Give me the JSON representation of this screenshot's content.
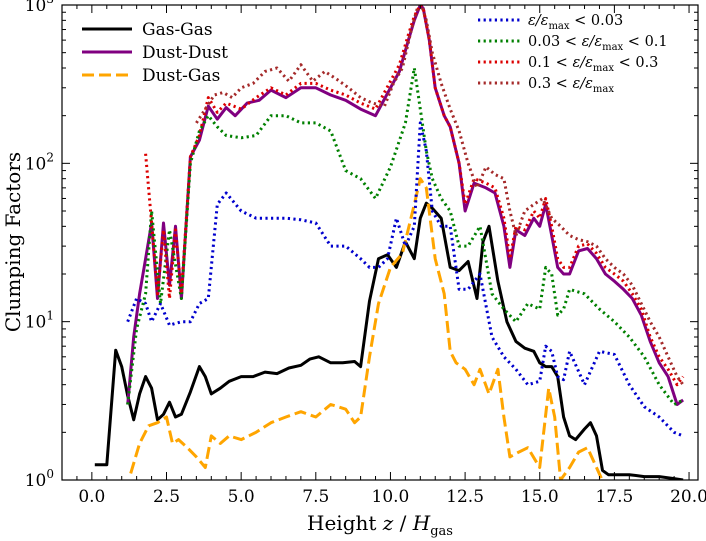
{
  "chart_data": {
    "type": "line",
    "xlabel": "Height z / H_gas",
    "xlabel_parts": {
      "prefix": "Height ",
      "var": "z",
      "sep": " / ",
      "H": "H",
      "sub": "gas"
    },
    "ylabel": "Clumping Factors",
    "xlim": [
      -1.0,
      20.3
    ],
    "ylim": [
      1,
      1000
    ],
    "yscale": "log",
    "x_ticks": [
      0.0,
      2.5,
      5.0,
      7.5,
      10.0,
      12.5,
      15.0,
      17.5,
      20.0
    ],
    "x_tick_labels": [
      "0.0",
      "2.5",
      "5.0",
      "7.5",
      "10.0",
      "12.5",
      "15.0",
      "17.5",
      "20.0"
    ],
    "y_ticks": [
      1,
      10,
      100,
      1000
    ],
    "y_tick_labels": [
      {
        "base": "10",
        "exp": "0"
      },
      {
        "base": "10",
        "exp": "1"
      },
      {
        "base": "10",
        "exp": "2"
      },
      {
        "base": "10",
        "exp": "3"
      }
    ],
    "legend_left_position": "top-left",
    "legend_right_position": "top-right",
    "grid": false,
    "series": [
      {
        "name": "Gas-Gas",
        "color": "#000000",
        "style": "solid",
        "legend": "left",
        "x": [
          0.1,
          0.5,
          0.8,
          1.0,
          1.2,
          1.4,
          1.6,
          1.8,
          2.0,
          2.2,
          2.4,
          2.6,
          2.8,
          3.0,
          3.3,
          3.6,
          3.8,
          4.0,
          4.3,
          4.6,
          5.0,
          5.4,
          5.8,
          6.2,
          6.6,
          7.0,
          7.3,
          7.6,
          8.0,
          8.4,
          8.8,
          9.0,
          9.3,
          9.6,
          9.9,
          10.2,
          10.5,
          10.8,
          11.0,
          11.2,
          11.4,
          11.7,
          12.0,
          12.3,
          12.6,
          12.9,
          13.1,
          13.3,
          13.6,
          13.9,
          14.2,
          14.5,
          14.8,
          15.0,
          15.2,
          15.4,
          15.6,
          15.8,
          16.0,
          16.2,
          16.5,
          16.7,
          16.9,
          17.1,
          17.3,
          17.6,
          18.0,
          18.5,
          19.0,
          19.5,
          19.8
        ],
        "y": [
          1.25,
          1.25,
          6.6,
          5.2,
          3.4,
          2.4,
          3.5,
          4.5,
          3.8,
          2.4,
          2.6,
          3.1,
          2.5,
          2.6,
          3.6,
          5.2,
          4.5,
          3.5,
          3.8,
          4.2,
          4.5,
          4.5,
          4.8,
          4.7,
          5.1,
          5.3,
          5.8,
          6.0,
          5.5,
          5.5,
          5.6,
          5.2,
          13.5,
          25.0,
          26.5,
          22.0,
          32.0,
          25.0,
          45.0,
          56.0,
          52.0,
          45.0,
          22.0,
          21.0,
          24.0,
          14.0,
          32.0,
          40.0,
          18.0,
          10.0,
          7.5,
          6.8,
          6.5,
          5.5,
          5.2,
          5.2,
          4.5,
          2.5,
          1.9,
          1.8,
          2.1,
          2.3,
          1.9,
          1.15,
          1.08,
          1.08,
          1.08,
          1.05,
          1.05,
          1.02,
          1.0
        ]
      },
      {
        "name": "Dust-Dust",
        "color": "#800080",
        "style": "solid",
        "legend": "left",
        "x": [
          1.2,
          1.4,
          1.6,
          1.8,
          2.0,
          2.2,
          2.4,
          2.6,
          2.8,
          3.0,
          3.3,
          3.6,
          3.9,
          4.2,
          4.5,
          4.8,
          5.2,
          5.6,
          6.0,
          6.5,
          7.0,
          7.5,
          8.0,
          8.5,
          9.0,
          9.5,
          10.0,
          10.3,
          10.6,
          10.8,
          11.0,
          11.1,
          11.3,
          11.5,
          11.8,
          12.0,
          12.3,
          12.5,
          12.8,
          13.2,
          13.5,
          13.8,
          14.0,
          14.2,
          14.5,
          14.8,
          15.0,
          15.2,
          15.4,
          15.6,
          15.8,
          16.0,
          16.3,
          16.6,
          16.9,
          17.2,
          17.5,
          17.8,
          18.1,
          18.4,
          18.7,
          19.0,
          19.3,
          19.6,
          19.8
        ],
        "y": [
          3.0,
          8.0,
          15.0,
          25.0,
          42.0,
          14.0,
          42.0,
          17.0,
          40.0,
          14.0,
          110.0,
          140.0,
          230.0,
          190.0,
          225.0,
          200.0,
          240.0,
          250.0,
          290.0,
          260.0,
          300.0,
          300.0,
          270.0,
          250.0,
          220.0,
          200.0,
          300.0,
          380.0,
          600.0,
          800.0,
          1000.0,
          950.0,
          600.0,
          300.0,
          200.0,
          170.0,
          100.0,
          50.0,
          75.0,
          70.0,
          65.0,
          40.0,
          22.0,
          38.0,
          35.0,
          45.0,
          40.0,
          55.0,
          35.0,
          22.0,
          20.0,
          20.0,
          28.0,
          29.0,
          25.0,
          20.0,
          18.0,
          16.0,
          14.0,
          11.0,
          7.5,
          5.5,
          4.5,
          3.0,
          3.2
        ]
      },
      {
        "name": "Dust-Gas",
        "color": "#FFA500",
        "style": "dashed",
        "legend": "left",
        "x": [
          1.3,
          1.6,
          1.9,
          2.2,
          2.5,
          2.7,
          2.9,
          3.2,
          3.5,
          3.8,
          4.0,
          4.3,
          4.6,
          5.0,
          5.5,
          6.0,
          6.5,
          7.0,
          7.5,
          8.0,
          8.5,
          8.8,
          9.0,
          9.3,
          9.6,
          10.0,
          10.4,
          10.8,
          11.0,
          11.2,
          11.5,
          11.8,
          12.0,
          12.2,
          12.5,
          12.8,
          13.0,
          13.3,
          13.6,
          13.8,
          14.0,
          14.3,
          14.6,
          15.0,
          15.3,
          15.5,
          15.7,
          16.0,
          16.3,
          16.6,
          16.9,
          17.2,
          17.5,
          18.0,
          18.5,
          19.0,
          19.5,
          19.8
        ],
        "y": [
          1.1,
          1.7,
          2.2,
          2.3,
          2.5,
          1.7,
          1.8,
          1.6,
          1.4,
          1.2,
          1.9,
          1.7,
          1.9,
          1.8,
          2.0,
          2.3,
          2.5,
          2.7,
          2.5,
          3.0,
          2.8,
          2.3,
          2.5,
          6.0,
          13.0,
          22.0,
          27.0,
          55.0,
          80.0,
          70.0,
          25.0,
          15.0,
          6.5,
          5.5,
          5.0,
          4.0,
          5.0,
          3.5,
          5.0,
          2.5,
          1.4,
          1.5,
          1.6,
          1.2,
          3.8,
          2.5,
          1.0,
          1.2,
          1.5,
          1.6,
          1.2,
          0.9,
          0.9,
          0.9,
          0.9,
          0.9,
          0.9,
          0.9
        ]
      },
      {
        "name": "ε/ε_max < 0.03",
        "color": "#0000CD",
        "style": "dotted",
        "legend": "right",
        "label_parts": {
          "pre": "",
          "main": "ε/ε",
          "sub": "max",
          "post": " < 0.03"
        },
        "x": [
          1.2,
          1.5,
          1.8,
          2.0,
          2.3,
          2.6,
          3.0,
          3.3,
          3.6,
          3.9,
          4.2,
          4.5,
          5.0,
          5.5,
          6.0,
          6.5,
          7.0,
          7.5,
          8.0,
          8.5,
          9.0,
          9.3,
          9.6,
          9.9,
          10.2,
          10.5,
          10.8,
          11.0,
          11.2,
          11.4,
          11.7,
          12.0,
          12.3,
          12.6,
          13.0,
          13.4,
          13.8,
          14.2,
          14.6,
          15.0,
          15.2,
          15.4,
          15.6,
          15.8,
          16.0,
          16.5,
          17.0,
          17.5,
          18.0,
          18.5,
          19.0,
          19.5,
          19.8
        ],
        "y": [
          10.0,
          14.0,
          13.0,
          10.0,
          13.0,
          9.5,
          10.0,
          10.0,
          13.0,
          14.0,
          55.0,
          65.0,
          50.0,
          45.0,
          45.0,
          45.0,
          44.0,
          42.0,
          30.0,
          30.0,
          25.0,
          22.0,
          22.0,
          25.0,
          45.0,
          30.0,
          40.0,
          180.0,
          120.0,
          50.0,
          40.0,
          40.0,
          16.0,
          16.0,
          20.0,
          8.0,
          6.0,
          5.0,
          4.0,
          4.2,
          7.0,
          6.5,
          4.5,
          4.3,
          6.5,
          4.0,
          6.5,
          6.2,
          4.0,
          2.9,
          2.5,
          2.0,
          1.9
        ]
      },
      {
        "name": "0.03 < ε/ε_max < 0.1",
        "color": "#008000",
        "style": "dotted",
        "legend": "right",
        "label_parts": {
          "pre": "0.03 < ",
          "main": "ε/ε",
          "sub": "max",
          "post": " < 0.1"
        },
        "x": [
          1.2,
          1.5,
          1.8,
          2.0,
          2.3,
          2.6,
          3.0,
          3.3,
          3.6,
          3.9,
          4.2,
          4.5,
          5.0,
          5.5,
          6.0,
          6.5,
          7.0,
          7.5,
          8.0,
          8.5,
          9.0,
          9.5,
          10.0,
          10.5,
          10.8,
          11.0,
          11.2,
          11.4,
          11.7,
          12.0,
          12.3,
          12.6,
          13.0,
          13.4,
          13.8,
          14.2,
          14.6,
          15.0,
          15.2,
          15.4,
          15.6,
          15.8,
          16.0,
          16.5,
          17.0,
          17.5,
          18.0,
          18.5,
          19.0,
          19.5,
          19.8
        ],
        "y": [
          3.0,
          9.0,
          15.0,
          50.0,
          13.0,
          38.0,
          14.0,
          100.0,
          160.0,
          200.0,
          170.0,
          150.0,
          145.0,
          150.0,
          200.0,
          200.0,
          180.0,
          180.0,
          160.0,
          90.0,
          80.0,
          60.0,
          95.0,
          180.0,
          400.0,
          220.0,
          120.0,
          80.0,
          60.0,
          50.0,
          30.0,
          30.0,
          40.0,
          15.0,
          12.0,
          10.0,
          13.0,
          12.0,
          22.0,
          20.0,
          11.0,
          12.0,
          16.0,
          15.0,
          12.0,
          10.0,
          8.0,
          6.0,
          4.0,
          3.0,
          3.2
        ]
      },
      {
        "name": "0.1 < ε/ε_max < 0.3",
        "color": "#DC0000",
        "style": "dotted",
        "legend": "right",
        "label_parts": {
          "pre": "0.1 < ",
          "main": "ε/ε",
          "sub": "max",
          "post": " < 0.3"
        },
        "x": [
          1.8,
          2.0,
          2.2,
          2.4,
          2.6,
          2.8,
          3.0,
          3.3,
          3.6,
          3.9,
          4.2,
          4.5,
          5.0,
          5.5,
          6.0,
          6.5,
          7.0,
          7.5,
          8.0,
          8.5,
          9.0,
          9.5,
          10.0,
          10.3,
          10.6,
          10.8,
          11.0,
          11.1,
          11.3,
          11.5,
          11.8,
          12.0,
          12.3,
          12.5,
          12.8,
          13.2,
          13.5,
          13.8,
          14.0,
          14.2,
          14.5,
          14.8,
          15.0,
          15.2,
          15.4,
          15.6,
          15.8,
          16.0,
          16.3,
          16.6,
          16.9,
          17.2,
          17.5,
          17.8,
          18.1,
          18.4,
          18.7,
          19.0,
          19.3,
          19.6,
          19.8
        ],
        "y": [
          115.0,
          42.0,
          15.0,
          38.0,
          14.0,
          38.0,
          15.0,
          110.0,
          150.0,
          260.0,
          210.0,
          240.0,
          220.0,
          260.0,
          300.0,
          270.0,
          320.0,
          320.0,
          290.0,
          270.0,
          240.0,
          220.0,
          330.0,
          420.0,
          650.0,
          850.0,
          1000.0,
          950.0,
          600.0,
          300.0,
          200.0,
          170.0,
          100.0,
          55.0,
          80.0,
          75.0,
          70.0,
          45.0,
          25.0,
          40.0,
          38.0,
          50.0,
          45.0,
          60.0,
          40.0,
          25.0,
          22.0,
          22.0,
          30.0,
          31.0,
          27.0,
          22.0,
          20.0,
          18.0,
          15.0,
          12.0,
          8.0,
          6.0,
          5.0,
          4.0,
          4.5
        ]
      },
      {
        "name": "0.3 < ε/ε_max",
        "color": "#A52A2A",
        "style": "dotted",
        "legend": "right",
        "label_parts": {
          "pre": "0.3 < ",
          "main": "ε/ε",
          "sub": "max",
          "post": ""
        },
        "x": [
          3.5,
          3.8,
          4.1,
          4.4,
          4.7,
          5.0,
          5.4,
          5.8,
          6.2,
          6.6,
          7.0,
          7.4,
          7.8,
          8.2,
          8.6,
          9.0,
          9.4,
          9.8,
          10.1,
          10.4,
          10.7,
          10.9,
          11.0,
          11.2,
          11.4,
          11.7,
          12.0,
          12.3,
          12.6,
          12.9,
          13.2,
          13.5,
          13.8,
          14.0,
          14.2,
          14.5,
          14.8,
          15.1,
          15.4,
          15.7,
          16.0,
          16.3,
          16.6,
          16.9,
          17.2,
          17.5,
          17.8,
          18.1,
          18.4,
          18.7,
          19.0,
          19.3,
          19.6,
          19.8
        ],
        "y": [
          180.0,
          220.0,
          270.0,
          280.0,
          260.0,
          300.0,
          320.0,
          380.0,
          400.0,
          330.0,
          420.0,
          330.0,
          380.0,
          340.0,
          300.0,
          260.0,
          240.0,
          230.0,
          320.0,
          400.0,
          700.0,
          950.0,
          1050.0,
          800.0,
          500.0,
          320.0,
          220.0,
          160.0,
          100.0,
          70.0,
          95.0,
          85.0,
          80.0,
          50.0,
          35.0,
          50.0,
          55.0,
          60.0,
          45.0,
          40.0,
          35.0,
          33.0,
          32.0,
          30.0,
          25.0,
          22.0,
          20.0,
          17.0,
          13.0,
          10.0,
          8.0,
          6.0,
          4.5,
          4.0
        ]
      }
    ]
  }
}
